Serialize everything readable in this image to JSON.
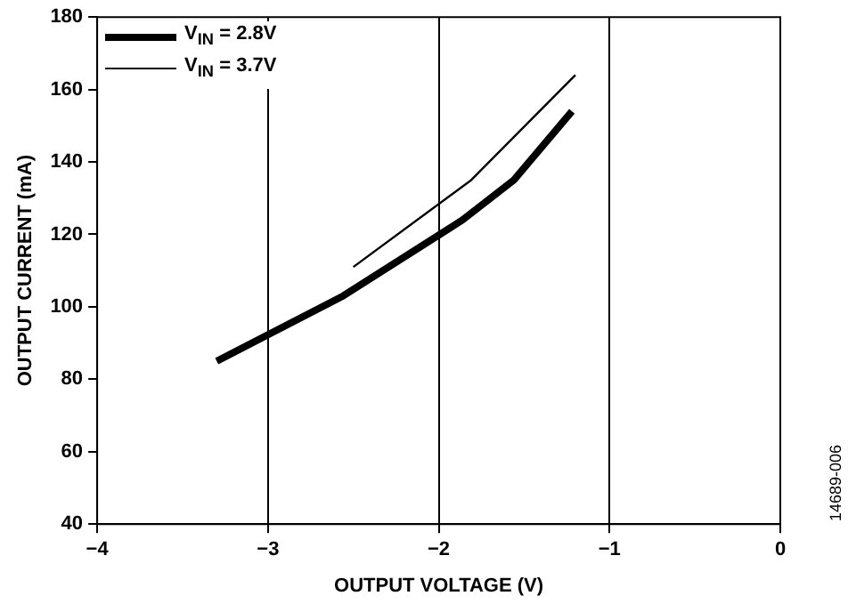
{
  "chart_data": {
    "type": "line",
    "xlabel": "OUTPUT VOLTAGE (V)",
    "ylabel": "OUTPUT CURRENT (mA)",
    "xlim": [
      -4,
      0
    ],
    "xticks": [
      -4,
      -3,
      -2,
      -1,
      0
    ],
    "ylim": [
      40,
      180
    ],
    "yticks": [
      40,
      60,
      80,
      100,
      120,
      140,
      160,
      180
    ],
    "grid": "x",
    "legend": "top left",
    "annotations": [
      "14689-006"
    ],
    "series": [
      {
        "name": "V$_{IN}$ = 2.8V",
        "color": "#000000",
        "x": [
          -3.3,
          -2.56,
          -1.86,
          -1.56,
          -1.22
        ],
        "values": [
          85,
          103,
          124,
          135,
          154
        ]
      },
      {
        "name": "V$_{IN}$ = 3.7V",
        "color": "#000000",
        "x": [
          -2.5,
          -1.81,
          -1.2
        ],
        "values": [
          111,
          135,
          164
        ]
      }
    ]
  }
}
